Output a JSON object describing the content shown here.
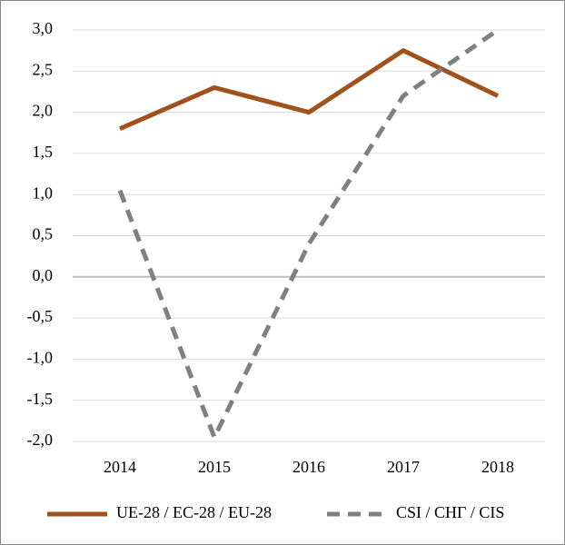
{
  "chart_data": {
    "type": "line",
    "categories": [
      "2014",
      "2015",
      "2016",
      "2017",
      "2018"
    ],
    "series": [
      {
        "name": "UE-28 / EC-28 / EU-28",
        "color": "#a0521c",
        "dash": false,
        "values": [
          1.8,
          2.3,
          2.0,
          2.75,
          2.2
        ]
      },
      {
        "name": "CSI / СНГ / CIS",
        "color": "#808080",
        "dash": true,
        "values": [
          1.05,
          -1.95,
          0.4,
          2.2,
          3.0
        ]
      }
    ],
    "ylim": [
      -2.0,
      3.0
    ],
    "yticks": [
      {
        "value": -2.0,
        "label": "-2,0"
      },
      {
        "value": -1.5,
        "label": "-1,5"
      },
      {
        "value": -1.0,
        "label": "-1,0"
      },
      {
        "value": -0.5,
        "label": "-0,5"
      },
      {
        "value": 0.0,
        "label": "0,0"
      },
      {
        "value": 0.5,
        "label": "0,5"
      },
      {
        "value": 1.0,
        "label": "1,0"
      },
      {
        "value": 1.5,
        "label": "1,5"
      },
      {
        "value": 2.0,
        "label": "2,0"
      },
      {
        "value": 2.5,
        "label": "2,5"
      },
      {
        "value": 3.0,
        "label": "3,0"
      }
    ],
    "grid": true,
    "legend": "bottom"
  }
}
